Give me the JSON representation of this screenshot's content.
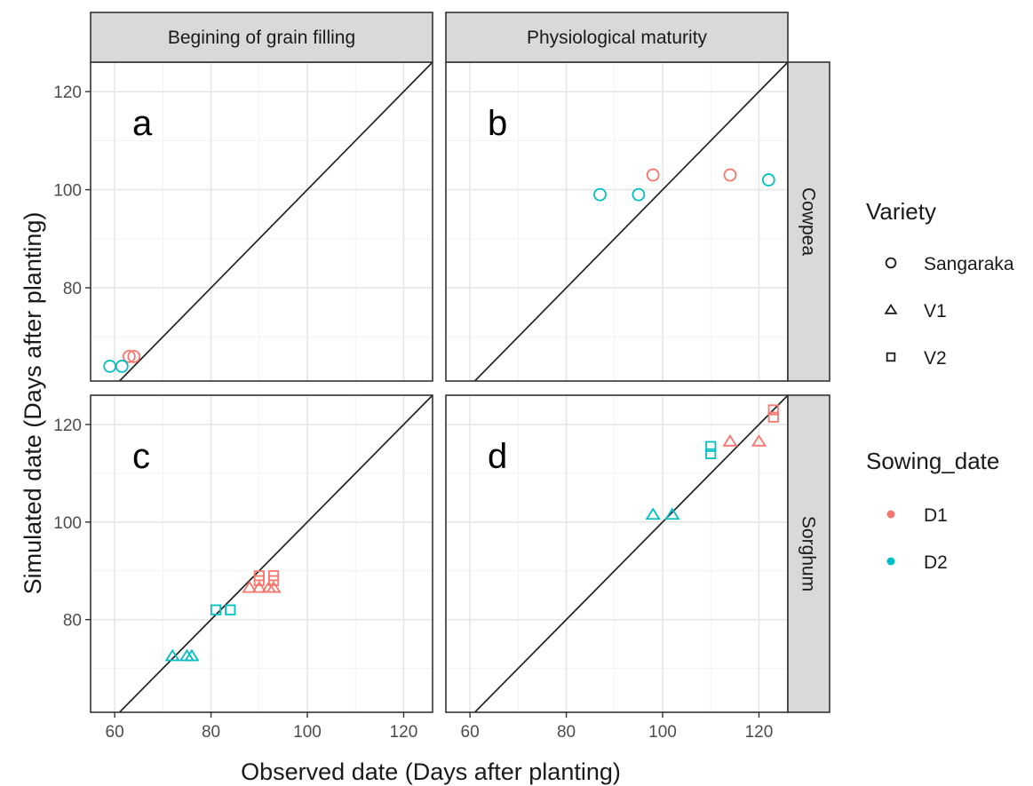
{
  "chart_data": {
    "type": "scatter",
    "xlabel": "Observed date (Days after planting)",
    "ylabel": "Simulated date (Days after planting)",
    "xlim": [
      55,
      126
    ],
    "ylim": [
      61,
      126
    ],
    "xticks": [
      60,
      80,
      100,
      120
    ],
    "yticks": [
      80,
      100,
      120
    ],
    "reference_line": "y = x",
    "grid": true,
    "columns": [
      "Begining of grain filling",
      "Physiological maturity"
    ],
    "rows": [
      "Cowpea",
      "Sorghum"
    ],
    "legends": {
      "variety": {
        "title": "Variety",
        "items": [
          {
            "label": "Sangaraka",
            "shape": "circle"
          },
          {
            "label": "V1",
            "shape": "triangle"
          },
          {
            "label": "V2",
            "shape": "square"
          }
        ]
      },
      "sowing_date": {
        "title": "Sowing_date",
        "items": [
          {
            "label": "D1",
            "color": "#f8766d"
          },
          {
            "label": "D2",
            "color": "#00bfc4"
          }
        ]
      }
    },
    "legend_placement": "right",
    "panels": [
      {
        "tag": "a",
        "column": "Begining of grain filling",
        "row": "Cowpea",
        "points": [
          {
            "variety": "Sangaraka",
            "sowing": "D1",
            "x": 63,
            "y": 66
          },
          {
            "variety": "Sangaraka",
            "sowing": "D1",
            "x": 64,
            "y": 66
          },
          {
            "variety": "Sangaraka",
            "sowing": "D2",
            "x": 59,
            "y": 64
          },
          {
            "variety": "Sangaraka",
            "sowing": "D2",
            "x": 61.5,
            "y": 64
          }
        ]
      },
      {
        "tag": "b",
        "column": "Physiological maturity",
        "row": "Cowpea",
        "points": [
          {
            "variety": "Sangaraka",
            "sowing": "D1",
            "x": 98,
            "y": 103
          },
          {
            "variety": "Sangaraka",
            "sowing": "D1",
            "x": 114,
            "y": 103
          },
          {
            "variety": "Sangaraka",
            "sowing": "D2",
            "x": 87,
            "y": 99
          },
          {
            "variety": "Sangaraka",
            "sowing": "D2",
            "x": 95,
            "y": 99
          },
          {
            "variety": "Sangaraka",
            "sowing": "D2",
            "x": 122,
            "y": 102
          }
        ]
      },
      {
        "tag": "c",
        "column": "Begining of grain filling",
        "row": "Sorghum",
        "points": [
          {
            "variety": "V1",
            "sowing": "D1",
            "x": 88,
            "y": 86.5
          },
          {
            "variety": "V1",
            "sowing": "D1",
            "x": 90,
            "y": 86.5
          },
          {
            "variety": "V1",
            "sowing": "D1",
            "x": 92,
            "y": 86.5
          },
          {
            "variety": "V1",
            "sowing": "D1",
            "x": 93,
            "y": 86.5
          },
          {
            "variety": "V2",
            "sowing": "D1",
            "x": 90,
            "y": 88
          },
          {
            "variety": "V2",
            "sowing": "D1",
            "x": 90,
            "y": 89
          },
          {
            "variety": "V2",
            "sowing": "D1",
            "x": 93,
            "y": 88
          },
          {
            "variety": "V2",
            "sowing": "D1",
            "x": 93,
            "y": 89
          },
          {
            "variety": "V1",
            "sowing": "D2",
            "x": 72,
            "y": 72.5
          },
          {
            "variety": "V1",
            "sowing": "D2",
            "x": 75,
            "y": 72.5
          },
          {
            "variety": "V1",
            "sowing": "D2",
            "x": 76,
            "y": 72.5
          },
          {
            "variety": "V2",
            "sowing": "D2",
            "x": 81,
            "y": 82
          },
          {
            "variety": "V2",
            "sowing": "D2",
            "x": 84,
            "y": 82
          }
        ]
      },
      {
        "tag": "d",
        "column": "Physiological maturity",
        "row": "Sorghum",
        "points": [
          {
            "variety": "V2",
            "sowing": "D1",
            "x": 123,
            "y": 121.5
          },
          {
            "variety": "V2",
            "sowing": "D1",
            "x": 123,
            "y": 123
          },
          {
            "variety": "V1",
            "sowing": "D1",
            "x": 114,
            "y": 116.5
          },
          {
            "variety": "V1",
            "sowing": "D1",
            "x": 120,
            "y": 116.5
          },
          {
            "variety": "V2",
            "sowing": "D2",
            "x": 110,
            "y": 114
          },
          {
            "variety": "V2",
            "sowing": "D2",
            "x": 110,
            "y": 115.5
          },
          {
            "variety": "V1",
            "sowing": "D2",
            "x": 98,
            "y": 101.5
          },
          {
            "variety": "V1",
            "sowing": "D2",
            "x": 102,
            "y": 101.5
          }
        ]
      }
    ]
  }
}
